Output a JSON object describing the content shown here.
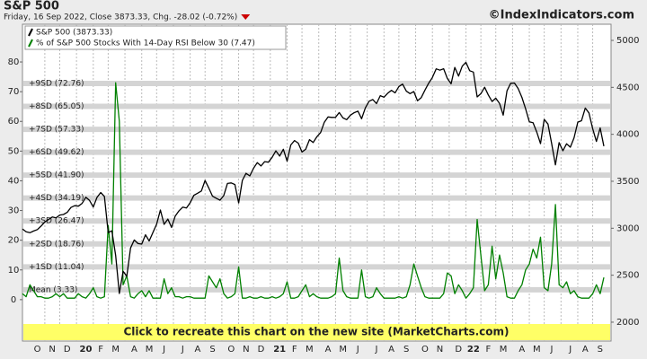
{
  "chart_data": {
    "type": "line",
    "title": "S&P 500",
    "subtitle": "Friday, 16 Sep 2022, Close 3873.33, Chg. -28.02 (-0.72%)",
    "watermark": "©IndexIndicators.com",
    "banner": "Click to recreate this chart on the new site (MarketCharts.com)",
    "categories": [
      null,
      null,
      null,
      null,
      "O",
      null,
      null,
      null,
      "N",
      null,
      null,
      null,
      "D",
      null,
      null,
      null,
      null,
      "20",
      null,
      null,
      null,
      "F",
      null,
      null,
      null,
      "M",
      null,
      null,
      null,
      null,
      "A",
      null,
      null,
      null,
      "M",
      null,
      null,
      null,
      "J",
      null,
      null,
      null,
      null,
      "J",
      null,
      null,
      null,
      "A",
      null,
      null,
      null,
      "S",
      null,
      null,
      null,
      null,
      "O",
      null,
      null,
      null,
      "N",
      null,
      null,
      null,
      "D",
      null,
      null,
      null,
      null,
      "21",
      null,
      null,
      null,
      "F",
      null,
      null,
      null,
      "M",
      null,
      null,
      null,
      null,
      "A",
      null,
      null,
      null,
      "M",
      null,
      null,
      null,
      "J",
      null,
      null,
      null,
      null,
      "J",
      null,
      null,
      null,
      "A",
      null,
      null,
      null,
      "S",
      null,
      null,
      null,
      null,
      "O",
      null,
      null,
      null,
      "N",
      null,
      null,
      null,
      null,
      "D",
      null,
      null,
      null,
      "22",
      null,
      null,
      null,
      "F",
      null,
      null,
      null,
      "M",
      null,
      null,
      null,
      null,
      "A",
      null,
      null,
      null,
      "M",
      null,
      null,
      null,
      "J",
      null,
      null,
      null,
      null,
      "J",
      null,
      null,
      null,
      "A",
      null,
      null,
      null,
      "S",
      null
    ],
    "series": [
      {
        "name": "S&P 500 (3873.33)",
        "color": "#000000",
        "axis": "y2",
        "values": [
          2992,
          2962,
          2952,
          2970,
          2986,
          3023,
          3067,
          3093,
          3120,
          3110,
          3141,
          3146,
          3169,
          3221,
          3240,
          3235,
          3265,
          3330,
          3295,
          3226,
          3328,
          3380,
          3338,
          2954,
          2972,
          2711,
          2305,
          2541,
          2489,
          2790,
          2875,
          2837,
          2831,
          2930,
          2864,
          2955,
          3044,
          3194,
          3041,
          3098,
          3009,
          3130,
          3185,
          3225,
          3216,
          3271,
          3351,
          3373,
          3397,
          3508,
          3427,
          3341,
          3319,
          3298,
          3348,
          3477,
          3483,
          3465,
          3270,
          3509,
          3585,
          3557,
          3638,
          3699,
          3663,
          3709,
          3703,
          3756,
          3824,
          3768,
          3841,
          3714,
          3887,
          3934,
          3906,
          3811,
          3842,
          3943,
          3913,
          3974,
          4019,
          4129,
          4185,
          4180,
          4181,
          4232,
          4174,
          4156,
          4204,
          4230,
          4247,
          4166,
          4281,
          4352,
          4370,
          4327,
          4411,
          4395,
          4437,
          4468,
          4442,
          4509,
          4535,
          4459,
          4433,
          4455,
          4357,
          4391,
          4471,
          4545,
          4605,
          4697,
          4683,
          4698,
          4595,
          4538,
          4712,
          4620,
          4726,
          4766,
          4677,
          4663,
          4398,
          4432,
          4501,
          4419,
          4349,
          4385,
          4329,
          4204,
          4463,
          4543,
          4546,
          4488,
          4393,
          4272,
          4132,
          4123,
          4024,
          3901,
          4158,
          4109,
          3901,
          3675,
          3912,
          3825,
          3899,
          3863,
          3962,
          4130,
          4145,
          4280,
          4228,
          4058,
          3924,
          4067,
          3873.33
        ]
      },
      {
        "name": "% of S&P 500 Stocks With 14-Day RSI Below 30 (7.47)",
        "color": "#008000",
        "values": [
          2,
          1,
          5,
          3,
          1,
          1,
          0.5,
          0.5,
          1,
          2,
          1,
          2,
          0.5,
          0.5,
          0.5,
          2,
          1,
          0.5,
          2,
          4,
          1,
          0.5,
          1,
          25,
          12,
          73,
          60,
          5,
          8,
          1,
          0.5,
          2,
          3,
          1,
          3,
          0.5,
          0.5,
          0.5,
          7,
          2,
          4,
          1,
          1,
          0.5,
          1,
          1,
          0.5,
          0.5,
          0.5,
          0.5,
          8,
          6,
          4,
          7,
          2,
          0.5,
          1,
          2,
          11,
          0.5,
          0.5,
          1,
          0.5,
          0.5,
          1,
          0.5,
          0.5,
          1,
          0.5,
          1,
          2,
          6,
          0.5,
          0.5,
          1,
          3,
          5,
          1,
          2,
          1,
          0.5,
          0.5,
          0.5,
          1,
          2,
          14,
          3,
          1,
          0.5,
          0.5,
          0.5,
          10,
          1,
          0.5,
          1,
          4,
          2,
          0.5,
          0.5,
          0.5,
          0.5,
          1,
          0.5,
          1,
          5,
          12,
          8,
          4,
          1,
          0.5,
          0.5,
          0.5,
          0.5,
          2,
          9,
          8,
          2,
          5,
          3,
          0.5,
          2,
          4,
          27,
          15,
          3,
          5,
          18,
          7,
          15,
          9,
          1,
          0.5,
          0.5,
          3,
          5,
          10,
          12,
          17,
          14,
          21,
          4,
          3,
          12,
          32,
          5,
          4,
          6,
          2,
          3,
          1,
          0.5,
          0.5,
          0.5,
          2,
          5,
          2,
          7.47
        ]
      }
    ],
    "bands": [
      {
        "label": "+9SD (72.76)",
        "value": 72.76
      },
      {
        "label": "+8SD (65.05)",
        "value": 65.05
      },
      {
        "label": "+7SD (57.33)",
        "value": 57.33
      },
      {
        "label": "+6SD (49.62)",
        "value": 49.62
      },
      {
        "label": "+5SD (41.90)",
        "value": 41.9
      },
      {
        "label": "+4SD (34.19)",
        "value": 34.19
      },
      {
        "label": "+3SD (26.47)",
        "value": 26.47
      },
      {
        "label": "+2SD (18.76)",
        "value": 18.76
      },
      {
        "label": "+1SD (11.04)",
        "value": 11.04
      },
      {
        "label": "Mean (3.33)",
        "value": 3.33
      }
    ],
    "ylim": [
      -8.5,
      92.7
    ],
    "yticks": [
      0,
      10,
      20,
      30,
      40,
      50,
      60,
      70,
      80
    ],
    "y2lim": [
      1971,
      5172
    ],
    "y2ticks": [
      2000,
      2500,
      3000,
      3500,
      4000,
      4500,
      5000
    ]
  }
}
